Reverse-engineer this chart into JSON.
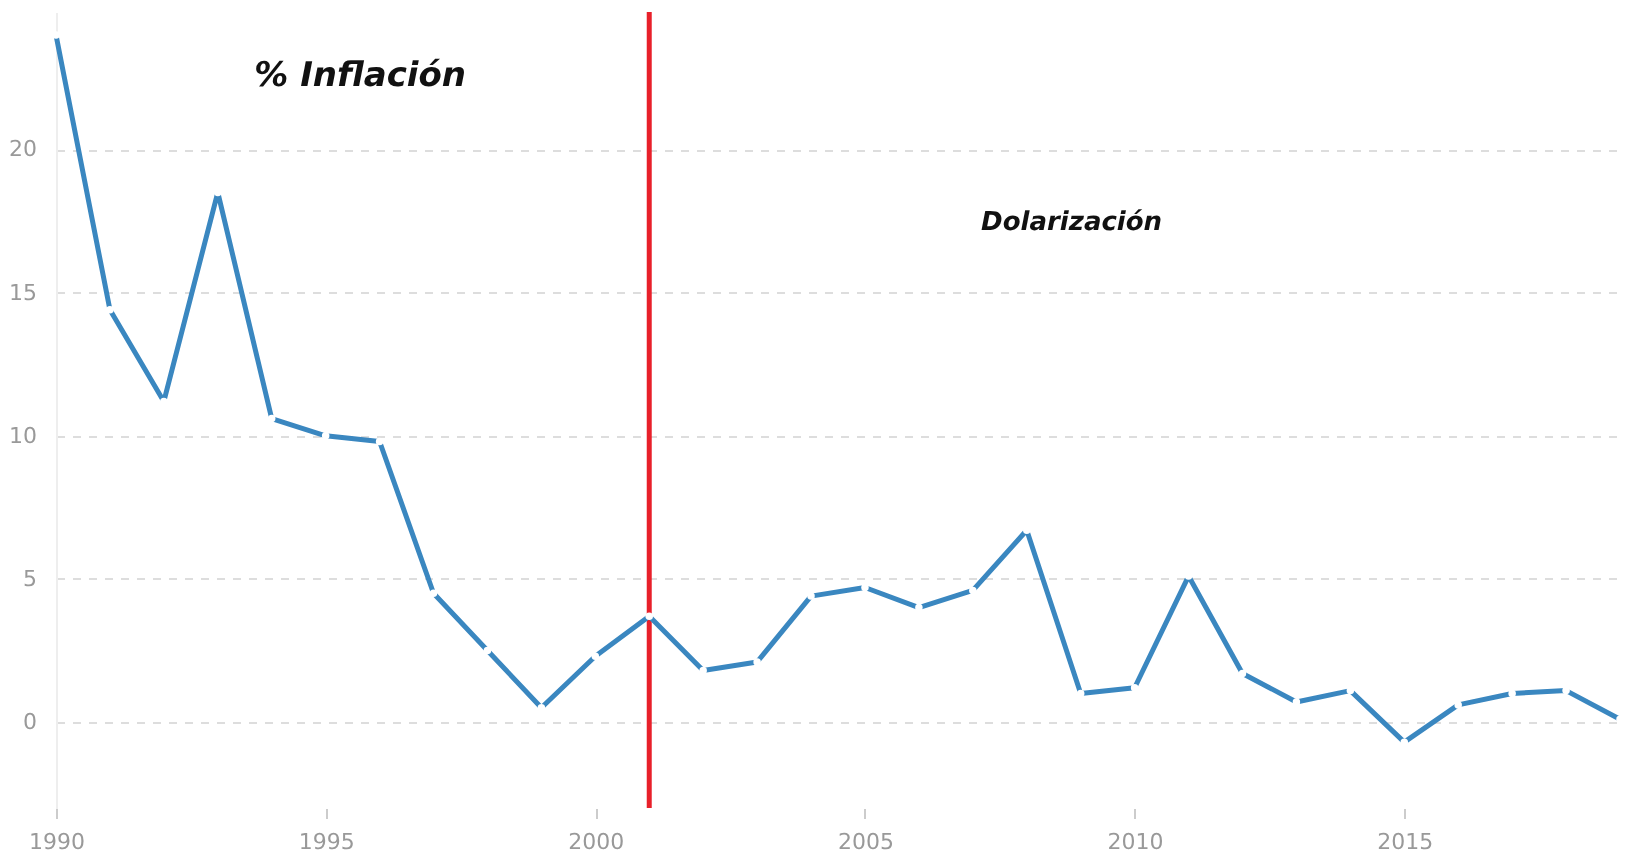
{
  "chart_data": {
    "type": "line",
    "x": [
      1990,
      1991,
      1992,
      1993,
      1994,
      1995,
      1996,
      1997,
      1998,
      1999,
      2000,
      2001,
      2002,
      2003,
      2004,
      2005,
      2006,
      2007,
      2008,
      2009,
      2010,
      2011,
      2012,
      2013,
      2014,
      2015,
      2016,
      2017,
      2018,
      2019
    ],
    "series": [
      {
        "color": "#3a87c0",
        "values": [
          24.0,
          14.4,
          11.2,
          18.5,
          10.6,
          10.0,
          9.8,
          4.5,
          2.5,
          0.5,
          2.3,
          3.7,
          1.8,
          2.1,
          4.4,
          4.7,
          4.0,
          4.6,
          6.7,
          1.0,
          1.2,
          5.1,
          1.7,
          0.7,
          1.1,
          -0.7,
          0.6,
          1.0,
          1.1,
          0.1
        ]
      }
    ],
    "xlim": [
      1990,
      2019
    ],
    "xticks": [
      1990,
      1995,
      2000,
      2005,
      2010,
      2015
    ],
    "ylim": [
      -3,
      24.8
    ],
    "yticks": [
      0,
      5,
      10,
      15,
      20
    ],
    "grid": "y",
    "marker": "circle",
    "line_style": "solid",
    "ref_lines": [
      {
        "axis": "x",
        "value": 2001,
        "color": "#e8202a"
      }
    ],
    "annotations": [
      "% Inflación",
      "Dolarización"
    ]
  }
}
